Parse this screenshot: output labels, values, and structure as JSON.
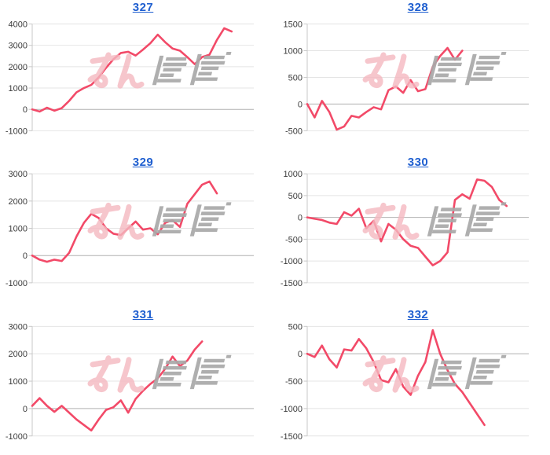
{
  "page": {
    "background": "#ffffff"
  },
  "style": {
    "line_color": "#f24a68",
    "grid_color": "#e4e4e4",
    "zero_line_color": "#b0b0b0",
    "axis_color": "#c8c8c8",
    "tick_color": "#c8c8c8",
    "tick_label_color": "#3b3b3b",
    "title_color": "#1f5fd0",
    "watermark_pink": "#f5b8c0",
    "watermark_gray": "#a9a9a9"
  },
  "watermark": {
    "text": "みんレポ"
  },
  "axis": {
    "slots": 31
  },
  "chart_data": [
    {
      "type": "line",
      "title": "327",
      "ylim": [
        -1000,
        4000
      ],
      "y_ticks": [
        4000,
        3000,
        2000,
        1000,
        0,
        -1000
      ],
      "xlabel": "",
      "ylabel": "",
      "grid": true,
      "legend": "none",
      "values": [
        0,
        -100,
        80,
        -60,
        60,
        400,
        800,
        1000,
        1150,
        1500,
        1950,
        2350,
        2640,
        2700,
        2520,
        2800,
        3100,
        3500,
        3150,
        2850,
        2750,
        2450,
        2120,
        2450,
        2560,
        3250,
        3800,
        3650
      ]
    },
    {
      "type": "line",
      "title": "328",
      "ylim": [
        -500,
        1500
      ],
      "y_ticks": [
        1500,
        1000,
        500,
        0,
        -500
      ],
      "xlabel": "",
      "ylabel": "",
      "grid": true,
      "legend": "none",
      "values": [
        0,
        -250,
        60,
        -150,
        -480,
        -420,
        -220,
        -250,
        -150,
        -60,
        -100,
        260,
        330,
        210,
        450,
        240,
        280,
        700,
        900,
        1050,
        830,
        1000
      ]
    },
    {
      "type": "line",
      "title": "329",
      "ylim": [
        -1000,
        3000
      ],
      "y_ticks": [
        3000,
        2000,
        1000,
        0,
        -1000
      ],
      "xlabel": "",
      "ylabel": "",
      "grid": true,
      "legend": "none",
      "values": [
        0,
        -150,
        -230,
        -150,
        -200,
        100,
        700,
        1200,
        1530,
        1380,
        1000,
        800,
        750,
        1000,
        1250,
        950,
        1000,
        780,
        1200,
        1300,
        1050,
        1900,
        2250,
        2600,
        2720,
        2280
      ]
    },
    {
      "type": "line",
      "title": "330",
      "ylim": [
        -1500,
        1000
      ],
      "y_ticks": [
        1000,
        500,
        0,
        -500,
        -1000,
        -1500
      ],
      "xlabel": "",
      "ylabel": "",
      "grid": true,
      "legend": "none",
      "values": [
        0,
        -30,
        -60,
        -120,
        -150,
        120,
        40,
        200,
        -250,
        -80,
        -550,
        -150,
        -280,
        -500,
        -650,
        -700,
        -900,
        -1100,
        -1000,
        -800,
        400,
        530,
        430,
        870,
        840,
        700,
        400,
        260
      ]
    },
    {
      "type": "line",
      "title": "331",
      "ylim": [
        -1000,
        3000
      ],
      "y_ticks": [
        3000,
        2000,
        1000,
        0,
        -1000
      ],
      "xlabel": "",
      "ylabel": "",
      "grid": true,
      "legend": "none",
      "values": [
        100,
        380,
        100,
        -120,
        100,
        -150,
        -400,
        -600,
        -800,
        -400,
        -50,
        50,
        300,
        -150,
        350,
        650,
        900,
        1100,
        1450,
        1900,
        1550,
        1750,
        2150,
        2450
      ]
    },
    {
      "type": "line",
      "title": "332",
      "ylim": [
        -1500,
        500
      ],
      "y_ticks": [
        500,
        0,
        -500,
        -1000,
        -1500
      ],
      "xlabel": "",
      "ylabel": "",
      "grid": true,
      "legend": "none",
      "values": [
        0,
        -60,
        150,
        -100,
        -250,
        80,
        60,
        270,
        100,
        -150,
        -480,
        -520,
        -280,
        -600,
        -750,
        -400,
        -150,
        430,
        0,
        -300,
        -550,
        -700,
        -900,
        -1100,
        -1300
      ]
    }
  ]
}
